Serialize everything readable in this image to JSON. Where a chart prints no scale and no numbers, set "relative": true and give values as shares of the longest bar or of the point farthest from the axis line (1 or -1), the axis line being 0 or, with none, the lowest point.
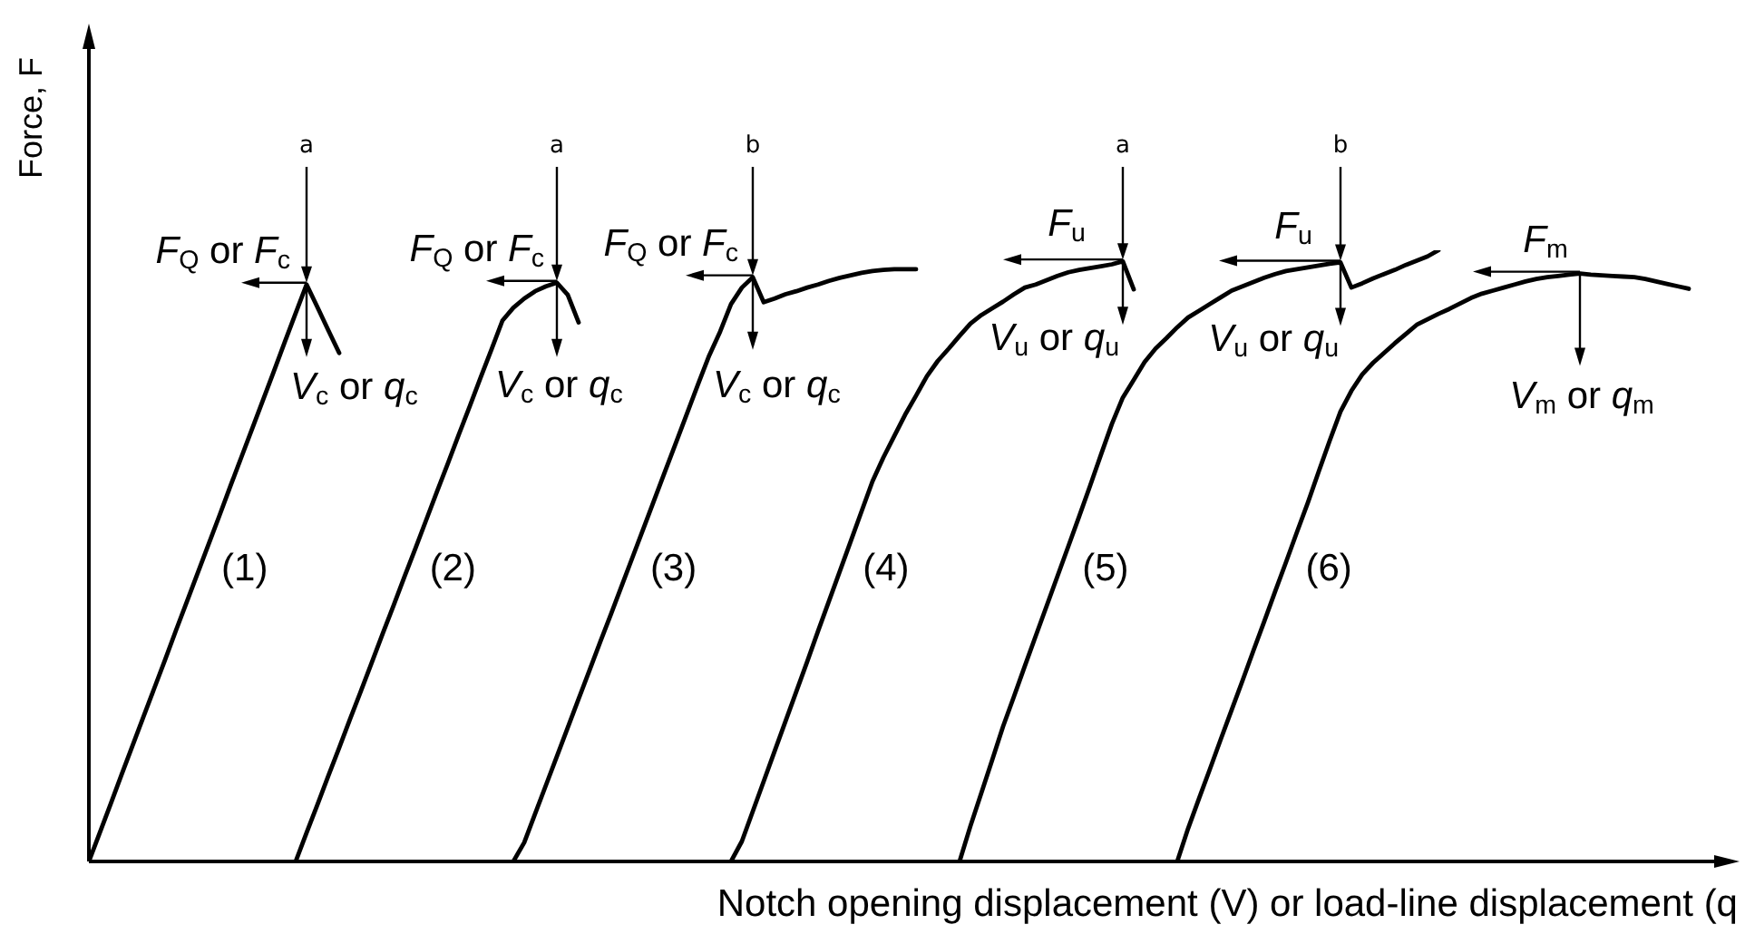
{
  "chart_data": {
    "type": "line",
    "relative": true,
    "line_style": "solid",
    "ylabel": "Force, F",
    "xlabel": "Notch opening displacement (V) or load-line displacement (q",
    "categories": [
      null,
      null,
      null,
      null,
      null,
      null,
      null,
      null,
      null,
      null,
      null,
      null,
      null,
      null,
      null,
      null,
      null,
      null,
      null,
      null,
      null,
      null,
      null,
      null,
      null,
      null,
      null,
      null,
      null,
      null,
      null,
      null,
      null,
      null,
      null,
      null,
      null,
      null,
      null,
      null,
      null,
      null,
      null,
      null,
      null,
      null,
      null,
      null,
      null,
      null,
      null,
      null,
      null,
      null,
      null,
      null,
      null,
      null,
      null,
      null,
      null,
      null,
      null,
      null,
      null,
      null,
      null,
      null,
      null,
      null,
      null,
      null,
      null,
      null,
      null,
      null,
      null,
      null,
      null,
      null,
      null,
      null,
      null,
      null,
      null,
      null,
      null,
      null,
      null,
      null,
      null,
      null,
      null,
      null,
      null,
      null,
      null,
      null,
      null,
      null,
      null,
      null,
      null,
      null,
      null,
      null,
      null,
      null,
      null,
      null,
      null,
      null,
      null,
      null,
      null,
      null,
      null,
      null,
      null,
      null,
      null,
      null,
      null,
      null,
      null,
      null,
      null,
      null,
      null,
      null,
      null,
      null,
      null,
      null,
      null,
      null,
      null,
      null,
      null,
      null,
      null,
      null,
      null,
      null,
      null,
      null,
      null,
      null,
      null,
      null,
      null,
      null
    ],
    "series": [
      {
        "name": "(1)",
        "color": "#000000",
        "values": [
          0,
          0.047,
          0.094,
          0.142,
          0.189,
          0.236,
          0.283,
          0.33,
          0.378,
          0.425,
          0.472,
          0.519,
          0.566,
          0.614,
          0.661,
          0.708,
          0.755,
          0.802,
          0.85,
          0.897,
          0.944,
          0.907,
          0.869,
          0.832,
          null,
          null,
          null,
          null,
          null,
          null,
          null,
          null,
          null,
          null,
          null,
          null,
          null,
          null,
          null,
          null,
          null,
          null,
          null,
          null,
          null,
          null,
          null,
          null,
          null,
          null,
          null,
          null,
          null,
          null,
          null,
          null,
          null,
          null,
          null,
          null,
          null,
          null,
          null,
          null,
          null,
          null,
          null,
          null,
          null,
          null,
          null,
          null,
          null,
          null,
          null,
          null,
          null,
          null,
          null,
          null,
          null,
          null,
          null,
          null,
          null,
          null,
          null,
          null,
          null,
          null,
          null,
          null,
          null,
          null,
          null,
          null,
          null,
          null,
          null,
          null,
          null,
          null,
          null,
          null,
          null,
          null,
          null,
          null,
          null,
          null,
          null,
          null,
          null,
          null,
          null,
          null,
          null,
          null,
          null,
          null,
          null,
          null,
          null,
          null,
          null,
          null,
          null,
          null,
          null,
          null,
          null,
          null,
          null,
          null,
          null,
          null,
          null,
          null,
          null,
          null,
          null,
          null,
          null,
          null,
          null,
          null,
          null,
          null,
          null,
          null,
          null,
          null
        ]
      },
      {
        "name": "(2)",
        "color": "#000000",
        "values": [
          null,
          null,
          null,
          null,
          null,
          null,
          null,
          null,
          null,
          null,
          null,
          null,
          null,
          null,
          null,
          null,
          null,
          null,
          null,
          0,
          0.047,
          0.093,
          0.14,
          0.186,
          0.233,
          0.279,
          0.326,
          0.373,
          0.419,
          0.466,
          0.512,
          0.559,
          0.606,
          0.652,
          0.699,
          0.745,
          0.792,
          0.838,
          0.885,
          0.906,
          0.921,
          0.933,
          0.941,
          0.947,
          0.927,
          0.882,
          null,
          null,
          null,
          null,
          null,
          null,
          null,
          null,
          null,
          null,
          null,
          null,
          null,
          null,
          null,
          null,
          null,
          null,
          null,
          null,
          null,
          null,
          null,
          null,
          null,
          null,
          null,
          null,
          null,
          null,
          null,
          null,
          null,
          null,
          null,
          null,
          null,
          null,
          null,
          null,
          null,
          null,
          null,
          null,
          null,
          null,
          null,
          null,
          null,
          null,
          null,
          null,
          null,
          null,
          null,
          null,
          null,
          null,
          null,
          null,
          null,
          null,
          null,
          null,
          null,
          null,
          null,
          null,
          null,
          null,
          null,
          null,
          null,
          null,
          null,
          null,
          null,
          null,
          null,
          null,
          null,
          null,
          null,
          null,
          null,
          null,
          null,
          null,
          null,
          null,
          null,
          null,
          null,
          null,
          null,
          null,
          null,
          null,
          null,
          null,
          null,
          null,
          null,
          null,
          null,
          null
        ]
      },
      {
        "name": "(3)",
        "color": "#000000",
        "values": [
          null,
          null,
          null,
          null,
          null,
          null,
          null,
          null,
          null,
          null,
          null,
          null,
          null,
          null,
          null,
          null,
          null,
          null,
          null,
          null,
          null,
          null,
          null,
          null,
          null,
          null,
          null,
          null,
          null,
          null,
          null,
          null,
          null,
          null,
          null,
          null,
          null,
          null,
          null,
          0,
          0.031,
          0.078,
          0.125,
          0.172,
          0.219,
          0.266,
          0.313,
          0.36,
          0.406,
          0.453,
          0.5,
          0.547,
          0.594,
          0.641,
          0.688,
          0.735,
          0.782,
          0.828,
          0.867,
          0.912,
          0.939,
          0.956,
          0.915,
          0.921,
          0.928,
          0.933,
          0.939,
          0.944,
          0.95,
          0.955,
          0.959,
          0.963,
          0.966,
          0.968,
          0.969,
          0.969,
          0.969,
          null,
          null,
          null,
          null,
          null,
          null,
          null,
          null,
          null,
          null,
          null,
          null,
          null,
          null,
          null,
          null,
          null,
          null,
          null,
          null,
          null,
          null,
          null,
          null,
          null,
          null,
          null,
          null,
          null,
          null,
          null,
          null,
          null,
          null,
          null,
          null,
          null,
          null,
          null,
          null,
          null,
          null,
          null,
          null,
          null,
          null,
          null,
          null,
          null,
          null,
          null,
          null,
          null,
          null,
          null,
          null,
          null,
          null,
          null,
          null,
          null,
          null,
          null,
          null,
          null,
          null,
          null,
          null,
          null,
          null,
          null,
          null,
          null,
          null,
          null
        ]
      },
      {
        "name": "(4)",
        "color": "#000000",
        "values": [
          null,
          null,
          null,
          null,
          null,
          null,
          null,
          null,
          null,
          null,
          null,
          null,
          null,
          null,
          null,
          null,
          null,
          null,
          null,
          null,
          null,
          null,
          null,
          null,
          null,
          null,
          null,
          null,
          null,
          null,
          null,
          null,
          null,
          null,
          null,
          null,
          null,
          null,
          null,
          null,
          null,
          null,
          null,
          null,
          null,
          null,
          null,
          null,
          null,
          null,
          null,
          null,
          null,
          null,
          null,
          null,
          null,
          null,
          null,
          0,
          0.033,
          0.082,
          0.131,
          0.18,
          0.229,
          0.278,
          0.327,
          0.377,
          0.426,
          0.475,
          0.524,
          0.573,
          0.622,
          0.661,
          0.696,
          0.731,
          0.762,
          0.794,
          0.819,
          0.839,
          0.86,
          0.88,
          0.894,
          0.905,
          0.916,
          0.928,
          0.939,
          0.944,
          0.951,
          0.958,
          0.964,
          0.968,
          0.971,
          0.974,
          0.977,
          0.982,
          0.936,
          null,
          null,
          null,
          null,
          null,
          null,
          null,
          null,
          null,
          null,
          null,
          null,
          null,
          null,
          null,
          null,
          null,
          null,
          null,
          null,
          null,
          null,
          null,
          null,
          null,
          null,
          null,
          null,
          null,
          null,
          null,
          null,
          null,
          null,
          null,
          null,
          null,
          null,
          null,
          null,
          null,
          null,
          null,
          null,
          null,
          null,
          null,
          null,
          null,
          null,
          null,
          null,
          null,
          null,
          null
        ]
      },
      {
        "name": "(5)",
        "color": "#000000",
        "values": [
          null,
          null,
          null,
          null,
          null,
          null,
          null,
          null,
          null,
          null,
          null,
          null,
          null,
          null,
          null,
          null,
          null,
          null,
          null,
          null,
          null,
          null,
          null,
          null,
          null,
          null,
          null,
          null,
          null,
          null,
          null,
          null,
          null,
          null,
          null,
          null,
          null,
          null,
          null,
          null,
          null,
          null,
          null,
          null,
          null,
          null,
          null,
          null,
          null,
          null,
          null,
          null,
          null,
          null,
          null,
          null,
          null,
          null,
          null,
          null,
          null,
          null,
          null,
          null,
          null,
          null,
          null,
          null,
          null,
          null,
          null,
          null,
          null,
          null,
          null,
          null,
          null,
          null,
          null,
          null,
          0,
          0.058,
          0.112,
          0.166,
          0.221,
          0.27,
          0.32,
          0.369,
          0.418,
          0.467,
          0.516,
          0.565,
          0.615,
          0.666,
          0.716,
          0.759,
          0.788,
          0.817,
          0.839,
          0.856,
          0.874,
          0.89,
          0.901,
          0.912,
          0.923,
          0.934,
          0.941,
          0.948,
          0.955,
          0.961,
          0.966,
          0.969,
          0.972,
          0.975,
          0.978,
          0.98,
          0.939,
          0.946,
          0.954,
          0.961,
          0.968,
          0.976,
          0.983,
          0.99,
          1,
          null,
          null,
          null,
          null,
          null,
          null,
          null,
          null,
          null,
          null,
          null,
          null,
          null,
          null,
          null,
          null,
          null,
          null,
          null,
          null,
          null,
          null,
          null,
          null,
          null,
          null,
          null
        ]
      },
      {
        "name": "(6)",
        "color": "#000000",
        "values": [
          null,
          null,
          null,
          null,
          null,
          null,
          null,
          null,
          null,
          null,
          null,
          null,
          null,
          null,
          null,
          null,
          null,
          null,
          null,
          null,
          null,
          null,
          null,
          null,
          null,
          null,
          null,
          null,
          null,
          null,
          null,
          null,
          null,
          null,
          null,
          null,
          null,
          null,
          null,
          null,
          null,
          null,
          null,
          null,
          null,
          null,
          null,
          null,
          null,
          null,
          null,
          null,
          null,
          null,
          null,
          null,
          null,
          null,
          null,
          null,
          null,
          null,
          null,
          null,
          null,
          null,
          null,
          null,
          null,
          null,
          null,
          null,
          null,
          null,
          null,
          null,
          null,
          null,
          null,
          null,
          null,
          null,
          null,
          null,
          null,
          null,
          null,
          null,
          null,
          null,
          null,
          null,
          null,
          null,
          null,
          null,
          null,
          null,
          null,
          null,
          0,
          0.054,
          0.103,
          0.151,
          0.2,
          0.248,
          0.296,
          0.345,
          0.393,
          0.442,
          0.49,
          0.539,
          0.587,
          0.638,
          0.688,
          0.736,
          0.77,
          0.797,
          0.816,
          0.832,
          0.848,
          0.863,
          0.878,
          0.887,
          0.896,
          0.904,
          0.913,
          0.922,
          0.929,
          0.934,
          0.939,
          0.944,
          0.949,
          0.953,
          0.956,
          0.958,
          0.96,
          0.962,
          0.96,
          0.959,
          0.958,
          0.957,
          0.956,
          0.953,
          0.949,
          0.945,
          0.941,
          0.937,
          null,
          null,
          null,
          null
        ]
      }
    ],
    "annotations": [
      "a",
      "F$_{Q}$ or F$_{c}$",
      "V$_{c}$ or q$_{c}$",
      "a",
      "F$_{Q}$ or F$_{c}$",
      "V$_{c}$ or q$_{c}$",
      "b",
      "F$_{Q}$ or F$_{c}$",
      "V$_{c}$ or q$_{c}$",
      "a",
      "F$_{u}$",
      "V$_{u}$ or q$_{u}$",
      "b",
      "F$_{u}$",
      "V$_{u}$ or q$_{u}$",
      "F$_{m}$",
      "V$_{m}$ or q$_{m}$"
    ]
  }
}
